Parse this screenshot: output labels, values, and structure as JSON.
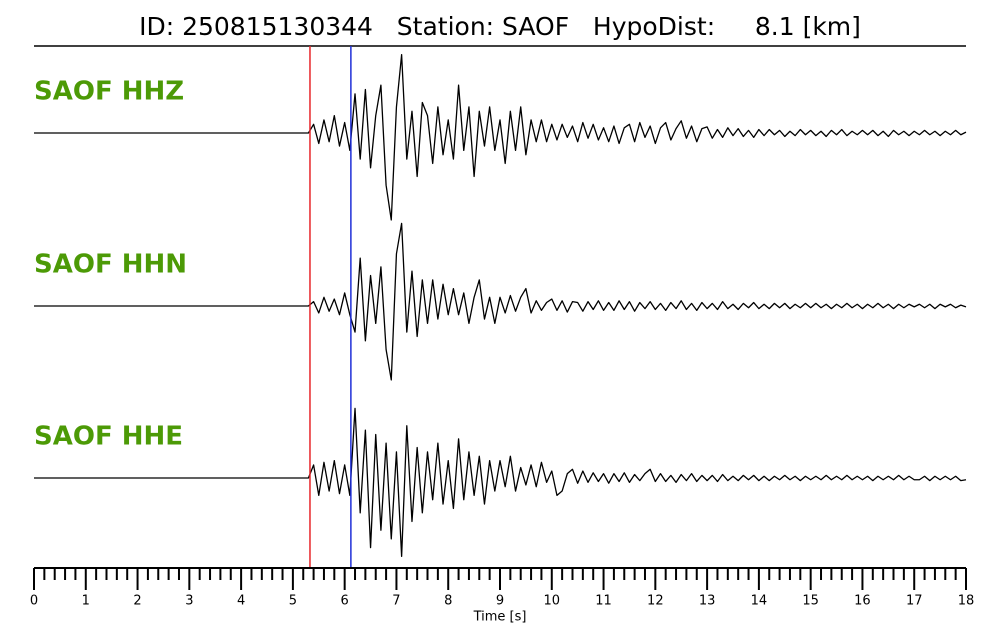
{
  "chart_data": {
    "type": "line",
    "title": "ID: 250815130344   Station: SAOF   HypoDist:     8.1 [km]",
    "xlabel": "Time [s]",
    "xlim": [
      0,
      18
    ],
    "xticks": [
      0,
      1,
      2,
      3,
      4,
      5,
      6,
      7,
      8,
      9,
      10,
      11,
      12,
      13,
      14,
      15,
      16,
      17,
      18
    ],
    "minor_tick_interval": 0.2,
    "ylim": [
      -1,
      1
    ],
    "label_color": "#4c9a06",
    "picks": [
      {
        "x": 5.33,
        "color": "#e8262a"
      },
      {
        "x": 6.12,
        "color": "#1f2fd8"
      }
    ],
    "x": [
      0,
      1,
      2,
      3,
      4,
      5,
      5.3,
      5.4,
      5.5,
      5.6,
      5.7,
      5.8,
      5.9,
      6.0,
      6.1,
      6.2,
      6.3,
      6.4,
      6.5,
      6.6,
      6.7,
      6.8,
      6.9,
      7.0,
      7.1,
      7.2,
      7.3,
      7.4,
      7.5,
      7.6,
      7.7,
      7.8,
      7.9,
      8.0,
      8.1,
      8.2,
      8.3,
      8.4,
      8.5,
      8.6,
      8.7,
      8.8,
      8.9,
      9.0,
      9.1,
      9.2,
      9.3,
      9.4,
      9.5,
      9.6,
      9.7,
      9.8,
      9.9,
      10.0,
      10.1,
      10.2,
      10.3,
      10.4,
      10.5,
      10.6,
      10.7,
      10.8,
      10.9,
      11.0,
      11.1,
      11.2,
      11.3,
      11.4,
      11.5,
      11.6,
      11.7,
      11.8,
      11.9,
      12.0,
      12.1,
      12.2,
      12.3,
      12.4,
      12.5,
      12.6,
      12.7,
      12.8,
      12.9,
      13.0,
      13.1,
      13.2,
      13.3,
      13.4,
      13.5,
      13.6,
      13.7,
      13.8,
      13.9,
      14.0,
      14.1,
      14.2,
      14.3,
      14.4,
      14.5,
      14.6,
      14.7,
      14.8,
      14.9,
      15.0,
      15.1,
      15.2,
      15.3,
      15.4,
      15.5,
      15.6,
      15.7,
      15.8,
      15.9,
      16.0,
      16.1,
      16.2,
      16.3,
      16.4,
      16.5,
      16.6,
      16.7,
      16.8,
      16.9,
      17.0,
      17.1,
      17.2,
      17.3,
      17.4,
      17.5,
      17.6,
      17.7,
      17.8,
      17.9,
      18.0
    ],
    "series": [
      {
        "name": "SAOF HHZ",
        "color": "#000000",
        "values": [
          0,
          0,
          0,
          0,
          0,
          0,
          0,
          0.1,
          -0.12,
          0.15,
          -0.1,
          0.2,
          -0.15,
          0.12,
          -0.2,
          0.45,
          -0.3,
          0.5,
          -0.4,
          0.2,
          0.55,
          -0.6,
          -1.0,
          0.3,
          0.9,
          -0.3,
          0.25,
          -0.5,
          0.35,
          0.2,
          -0.35,
          0.3,
          -0.25,
          0.15,
          -0.3,
          0.55,
          -0.2,
          0.3,
          -0.5,
          0.25,
          -0.15,
          0.3,
          -0.2,
          0.15,
          -0.35,
          0.25,
          -0.2,
          0.3,
          -0.25,
          0.15,
          -0.1,
          0.15,
          -0.1,
          0.1,
          -0.08,
          0.1,
          -0.05,
          0.08,
          -0.1,
          0.12,
          -0.06,
          0.1,
          -0.08,
          0.06,
          -0.1,
          0.08,
          -0.12,
          0.06,
          0.1,
          -0.1,
          0.12,
          -0.05,
          0.08,
          -0.12,
          0.06,
          0.12,
          -0.08,
          0.05,
          0.14,
          -0.06,
          0.08,
          -0.1,
          0.05,
          0.07,
          -0.06,
          0.04,
          -0.05,
          0.06,
          -0.03,
          0.05,
          -0.04,
          0.03,
          -0.05,
          0.04,
          -0.03,
          0.04,
          -0.02,
          0.03,
          -0.04,
          0.02,
          -0.03,
          0.04,
          -0.02,
          0.03,
          -0.03,
          0.02,
          -0.04,
          0.03,
          -0.02,
          0.04,
          -0.03,
          0.02,
          -0.02,
          0.03,
          -0.02,
          0.03,
          -0.03,
          0.02,
          -0.04,
          0.03,
          -0.02,
          0.02,
          -0.03,
          0.02,
          -0.02,
          0.03,
          -0.02,
          0.02,
          -0.03,
          0.02,
          -0.02,
          0.03,
          -0.02,
          0.01
        ]
      },
      {
        "name": "SAOF HHN",
        "color": "#000000",
        "values": [
          0,
          0,
          0,
          0,
          0,
          0,
          0,
          0.05,
          -0.08,
          0.1,
          -0.06,
          0.08,
          -0.1,
          0.15,
          -0.1,
          -0.3,
          0.55,
          -0.4,
          0.35,
          -0.2,
          0.45,
          -0.5,
          -0.85,
          0.6,
          0.95,
          -0.3,
          0.4,
          -0.35,
          0.3,
          -0.2,
          0.3,
          -0.15,
          0.25,
          -0.1,
          0.2,
          -0.1,
          0.15,
          -0.2,
          0.1,
          0.3,
          -0.15,
          0.1,
          -0.2,
          0.1,
          -0.08,
          0.12,
          -0.06,
          0.1,
          0.2,
          -0.08,
          0.06,
          -0.05,
          0.04,
          0.08,
          -0.05,
          0.06,
          -0.07,
          0.05,
          0.04,
          -0.06,
          0.05,
          -0.04,
          0.06,
          -0.05,
          0.04,
          -0.05,
          0.06,
          -0.04,
          0.05,
          -0.06,
          0.04,
          -0.03,
          0.05,
          -0.04,
          0.03,
          -0.05,
          0.04,
          -0.03,
          0.06,
          -0.04,
          0.03,
          -0.05,
          0.04,
          -0.03,
          0.03,
          -0.04,
          0.05,
          -0.03,
          0.02,
          -0.04,
          0.03,
          -0.02,
          0.04,
          -0.03,
          0.02,
          -0.03,
          0.03,
          -0.02,
          0.03,
          -0.03,
          0.02,
          -0.02,
          0.03,
          -0.02,
          0.03,
          -0.02,
          0.02,
          -0.03,
          0.02,
          -0.02,
          0.03,
          -0.02,
          0.02,
          -0.03,
          0.02,
          -0.02,
          0.03,
          -0.02,
          0.02,
          -0.03,
          0.02,
          -0.02,
          0.02,
          -0.01,
          0.02,
          -0.02,
          0.02,
          -0.03,
          0.02,
          -0.01,
          0.02,
          -0.02,
          0.01,
          -0.01
        ]
      },
      {
        "name": "SAOF HHE",
        "color": "#000000",
        "values": [
          0,
          0,
          0,
          0,
          0,
          0,
          0,
          0.15,
          -0.2,
          0.18,
          -0.15,
          0.2,
          -0.18,
          0.15,
          -0.2,
          0.8,
          -0.4,
          0.55,
          -0.8,
          0.5,
          -0.6,
          0.4,
          -0.7,
          0.3,
          -0.9,
          0.6,
          -0.5,
          0.35,
          -0.4,
          0.3,
          -0.25,
          0.4,
          -0.3,
          0.2,
          -0.35,
          0.45,
          -0.25,
          0.3,
          -0.2,
          0.25,
          -0.3,
          0.2,
          -0.15,
          0.2,
          -0.1,
          0.25,
          -0.15,
          0.12,
          -0.08,
          0.15,
          -0.1,
          0.18,
          -0.05,
          0.08,
          -0.2,
          -0.15,
          0.05,
          0.1,
          -0.06,
          0.08,
          -0.05,
          0.06,
          -0.04,
          0.05,
          -0.06,
          0.05,
          -0.04,
          0.06,
          -0.05,
          0.04,
          -0.03,
          0.05,
          0.1,
          -0.04,
          0.05,
          -0.04,
          0.03,
          -0.05,
          0.04,
          -0.03,
          0.05,
          -0.04,
          0.03,
          -0.03,
          0.03,
          -0.04,
          0.04,
          -0.03,
          0.02,
          -0.03,
          0.03,
          -0.02,
          0.03,
          -0.03,
          0.02,
          -0.03,
          0.02,
          -0.02,
          0.03,
          -0.02,
          0.02,
          -0.03,
          0.02,
          -0.02,
          0.02,
          -0.02,
          0.03,
          -0.02,
          0.02,
          -0.02,
          0.03,
          -0.02,
          0.02,
          -0.02,
          0.02,
          -0.03,
          0.02,
          -0.02,
          0.02,
          -0.02,
          0.03,
          -0.02,
          0.02,
          -0.02,
          -0.02,
          0.02,
          -0.03,
          0.02,
          -0.02,
          0.02,
          -0.02,
          0.02,
          -0.03,
          -0.02
        ]
      }
    ]
  }
}
